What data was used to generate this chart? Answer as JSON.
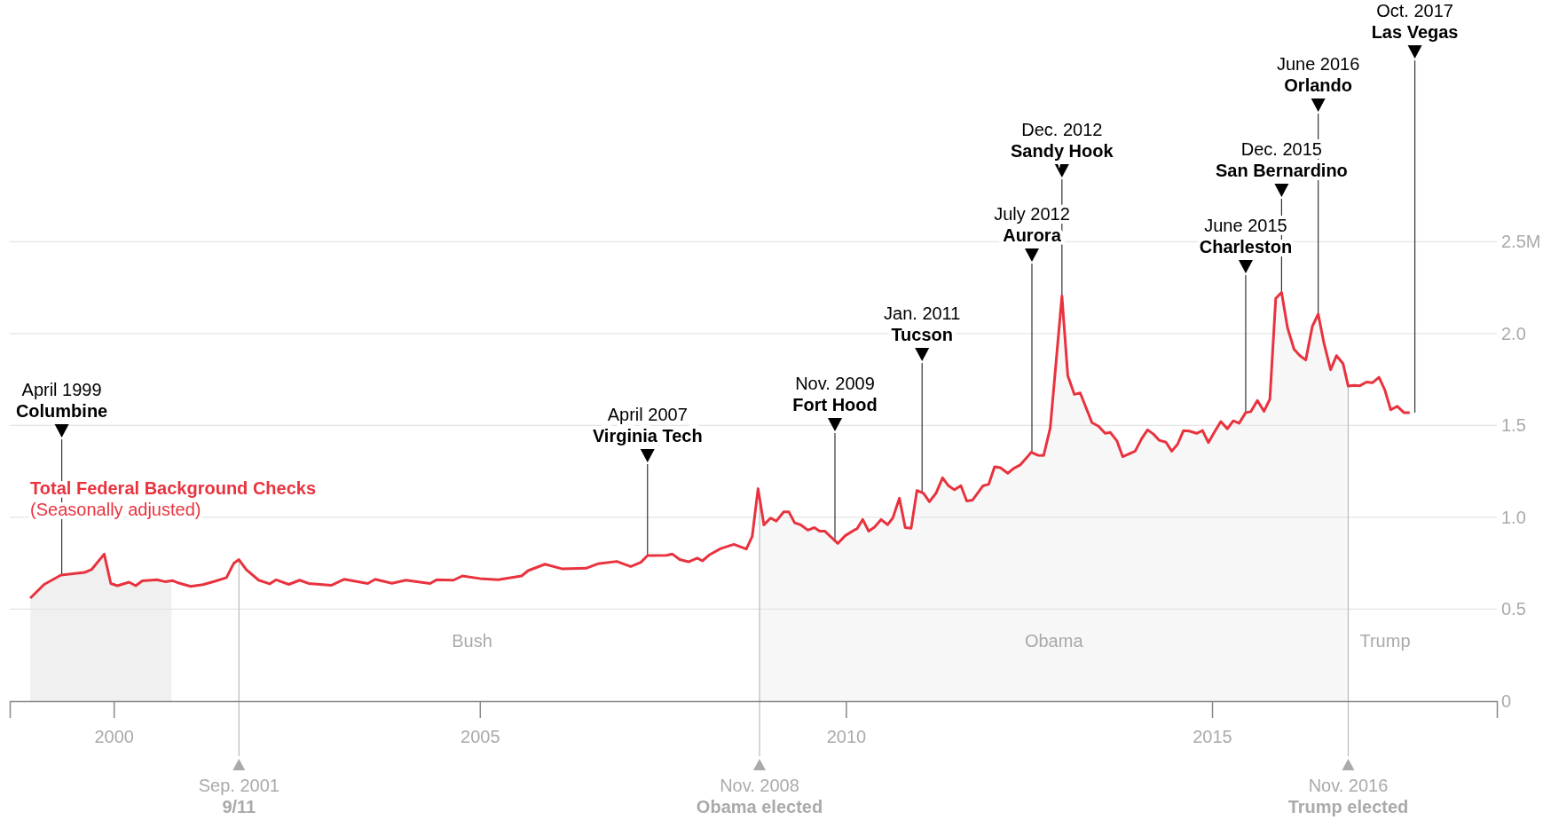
{
  "chart_data": {
    "type": "line",
    "x": [
      1998.86,
      1999.05,
      1999.28,
      1999.6,
      1999.7,
      1999.87,
      1999.96,
      2000.05,
      2000.21,
      2000.3,
      2000.39,
      2000.59,
      2000.7,
      2000.8,
      2000.89,
      2001.05,
      2001.22,
      2001.38,
      2001.54,
      2001.64,
      2001.71,
      2001.81,
      2001.98,
      2002.13,
      2002.22,
      2002.39,
      2002.54,
      2002.66,
      2002.97,
      2003.15,
      2003.47,
      2003.57,
      2003.8,
      2003.99,
      2004.32,
      2004.41,
      2004.64,
      2004.76,
      2005.0,
      2005.25,
      2005.57,
      2005.66,
      2005.89,
      2006.12,
      2006.45,
      2006.61,
      2006.87,
      2007.06,
      2007.2,
      2007.29,
      2007.55,
      2007.63,
      2007.73,
      2007.85,
      2007.97,
      2008.04,
      2008.14,
      2008.29,
      2008.47,
      2008.64,
      2008.72,
      2008.8,
      2008.88,
      2008.97,
      2009.05,
      2009.15,
      2009.22,
      2009.3,
      2009.38,
      2009.48,
      2009.57,
      2009.64,
      2009.71,
      2009.89,
      2009.99,
      2010.11,
      2010.15,
      2010.23,
      2010.31,
      2010.39,
      2010.48,
      2010.57,
      2010.64,
      2010.73,
      2010.81,
      2010.89,
      2010.97,
      2011.06,
      2011.14,
      2011.23,
      2011.32,
      2011.4,
      2011.48,
      2011.57,
      2011.65,
      2011.73,
      2011.87,
      2011.95,
      2012.03,
      2012.11,
      2012.21,
      2012.29,
      2012.38,
      2012.47,
      2012.53,
      2012.62,
      2012.7,
      2012.79,
      2012.95,
      2013.03,
      2013.12,
      2013.2,
      2013.36,
      2013.45,
      2013.54,
      2013.61,
      2013.7,
      2013.78,
      2013.95,
      2014.04,
      2014.12,
      2014.2,
      2014.28,
      2014.37,
      2014.45,
      2014.53,
      2014.61,
      2014.69,
      2014.79,
      2014.87,
      2014.95,
      2015.03,
      2015.12,
      2015.21,
      2015.29,
      2015.37,
      2015.46,
      2015.53,
      2015.62,
      2015.71,
      2015.79,
      2015.87,
      2015.95,
      2016.03,
      2016.12,
      2016.2,
      2016.28,
      2016.37,
      2016.45,
      2016.53,
      2016.62,
      2016.7,
      2016.79,
      2016.86,
      2016.94,
      2017.02,
      2017.11,
      2017.19,
      2017.28,
      2017.36,
      2017.44,
      2017.53,
      2017.62,
      2017.7
    ],
    "series": [
      {
        "name": "Total Federal Background Checks",
        "color": "#e8333f",
        "values": [
          0.56,
          0.635,
          0.686,
          0.7,
          0.717,
          0.8,
          0.64,
          0.628,
          0.647,
          0.628,
          0.654,
          0.66,
          0.65,
          0.656,
          0.642,
          0.624,
          0.634,
          0.652,
          0.672,
          0.75,
          0.77,
          0.715,
          0.658,
          0.638,
          0.66,
          0.635,
          0.658,
          0.64,
          0.63,
          0.663,
          0.64,
          0.663,
          0.641,
          0.658,
          0.64,
          0.66,
          0.658,
          0.681,
          0.667,
          0.66,
          0.681,
          0.71,
          0.745,
          0.72,
          0.723,
          0.747,
          0.76,
          0.732,
          0.755,
          0.792,
          0.793,
          0.8,
          0.77,
          0.758,
          0.778,
          0.763,
          0.797,
          0.83,
          0.853,
          0.828,
          0.896,
          1.156,
          0.959,
          0.996,
          0.98,
          1.03,
          1.03,
          0.97,
          0.96,
          0.93,
          0.944,
          0.925,
          0.925,
          0.858,
          0.9,
          0.93,
          0.937,
          0.988,
          0.925,
          0.947,
          0.988,
          0.96,
          0.996,
          1.104,
          0.944,
          0.94,
          1.146,
          1.131,
          1.085,
          1.131,
          1.215,
          1.172,
          1.15,
          1.172,
          1.089,
          1.094,
          1.171,
          1.18,
          1.275,
          1.27,
          1.24,
          1.266,
          1.285,
          1.325,
          1.354,
          1.338,
          1.336,
          1.486,
          2.204,
          1.771,
          1.669,
          1.677,
          1.515,
          1.496,
          1.457,
          1.462,
          1.417,
          1.33,
          1.36,
          1.429,
          1.476,
          1.453,
          1.419,
          1.409,
          1.36,
          1.398,
          1.472,
          1.469,
          1.457,
          1.472,
          1.407,
          1.462,
          1.521,
          1.482,
          1.525,
          1.512,
          1.57,
          1.575,
          1.636,
          1.577,
          1.643,
          2.191,
          2.224,
          2.033,
          1.915,
          1.88,
          1.856,
          2.039,
          2.106,
          1.945,
          1.803,
          1.88,
          1.836,
          1.714,
          1.718,
          1.716,
          1.736,
          1.732,
          1.762,
          1.693,
          1.585,
          1.604,
          1.57,
          1.57
        ]
      }
    ],
    "xlim": [
      1998.58,
      2018.89
    ],
    "ylim": [
      0,
      3.815
    ],
    "xticks": [
      2000,
      2005,
      2010,
      2015
    ],
    "yticks": [
      0,
      0.5,
      {
        "value": 1,
        "label": "1.0"
      },
      1.5,
      {
        "value": 2,
        "label": "2.0"
      },
      {
        "value": 2.5,
        "label": "2.5M"
      }
    ],
    "grid": "y",
    "bands": [
      {
        "axis": "x",
        "from": 1998.86,
        "to": 2000.79,
        "color": "#f0f0f0"
      },
      {
        "axis": "x",
        "from": 2008.82,
        "to": 2016.86,
        "label": "Obama",
        "color": "#f7f7f7"
      }
    ],
    "ref_lines": [
      {
        "axis": "x",
        "value": 2001.71,
        "label": "Sep. 2001\n9/11",
        "color": "#bbbbbb"
      },
      {
        "axis": "x",
        "value": 2008.82,
        "label": "Nov. 2008\nObama elected",
        "color": "#bbbbbb"
      },
      {
        "axis": "x",
        "value": 2016.86,
        "label": "Nov. 2016\nTrump elected",
        "color": "#bbbbbb"
      },
      {
        "axis": "x",
        "value": 1999.29,
        "label": "April 1999\nColumbine",
        "color": "#333333"
      },
      {
        "axis": "x",
        "value": 2007.29,
        "label": "April 2007\nVirginia Tech",
        "color": "#333333"
      },
      {
        "axis": "x",
        "value": 2009.85,
        "label": "Nov. 2009\nFort Hood",
        "color": "#333333"
      },
      {
        "axis": "x",
        "value": 2011.04,
        "label": "Jan. 2011\nTucson",
        "color": "#333333"
      },
      {
        "axis": "x",
        "value": 2012.54,
        "label": "July 2012\nAurora",
        "color": "#333333"
      },
      {
        "axis": "x",
        "value": 2012.95,
        "label": "Dec. 2012\nSandy Hook",
        "color": "#333333"
      },
      {
        "axis": "x",
        "value": 2015.46,
        "label": "June 2015\nCharleston",
        "color": "#333333"
      },
      {
        "axis": "x",
        "value": 2015.95,
        "label": "Dec. 2015\nSan Bernardino",
        "color": "#333333"
      },
      {
        "axis": "x",
        "value": 2016.45,
        "label": "June 2016\nOrlando",
        "color": "#333333"
      },
      {
        "axis": "x",
        "value": 2017.77,
        "label": "Oct. 2017\nLas Vegas",
        "color": "#333333"
      }
    ],
    "annotations": [
      "(Seasonally adjusted)",
      "Bush",
      "Trump"
    ]
  }
}
